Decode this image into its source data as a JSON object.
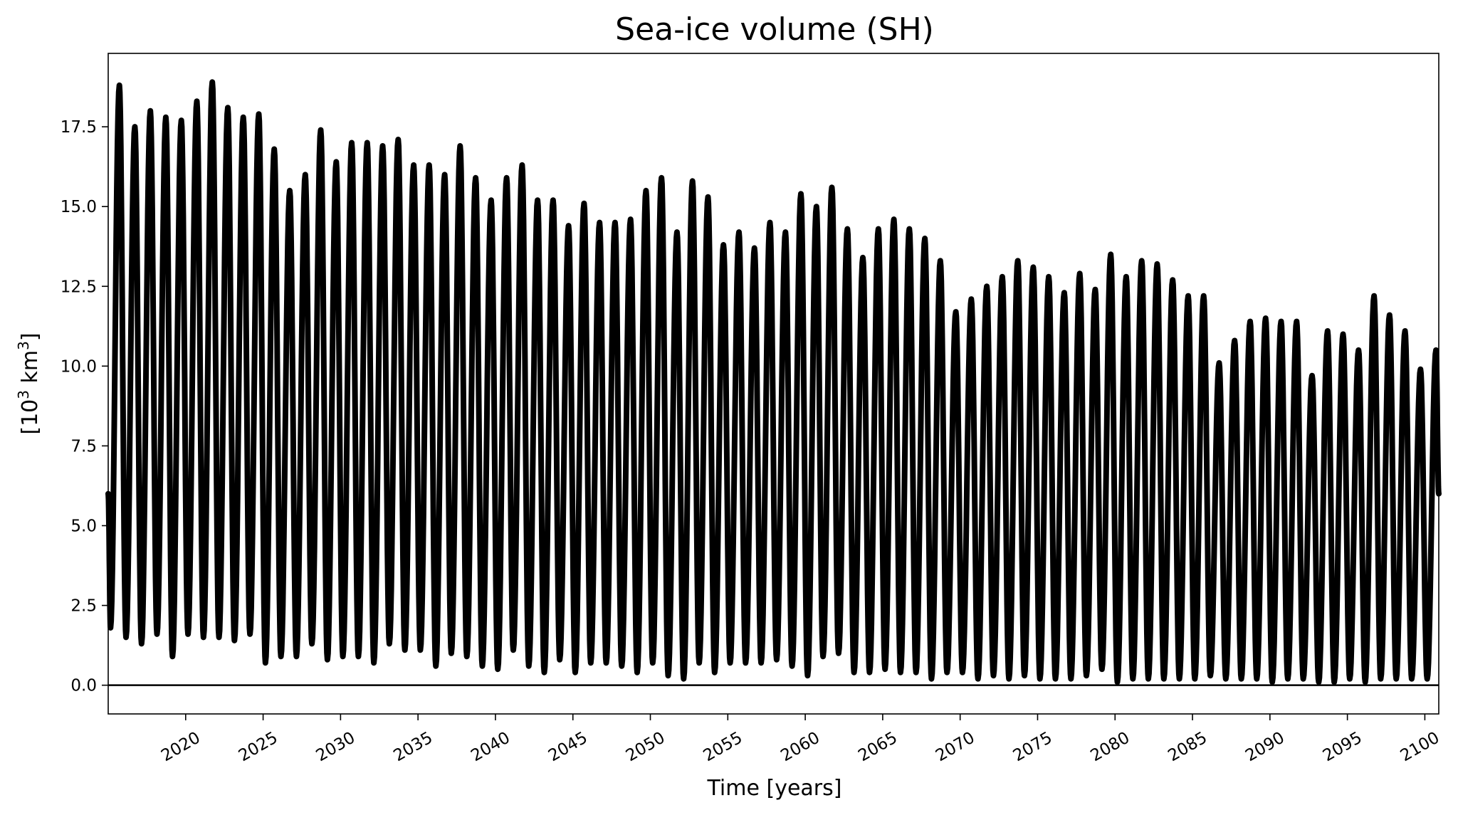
{
  "chart_data": {
    "type": "line",
    "title": "Sea-ice volume (SH)",
    "xlabel": "Time [years]",
    "ylabel_main": "[10",
    "ylabel_sup1": "3",
    "ylabel_mid": " km",
    "ylabel_sup2": "3",
    "ylabel_end": "]",
    "xlim": [
      2015.0,
      2100.9
    ],
    "ylim": [
      -0.9,
      19.8
    ],
    "xticks": [
      2020,
      2025,
      2030,
      2035,
      2040,
      2045,
      2050,
      2055,
      2060,
      2065,
      2070,
      2075,
      2080,
      2085,
      2090,
      2095,
      2100
    ],
    "xtick_labels": [
      "2020",
      "2025",
      "2030",
      "2035",
      "2040",
      "2045",
      "2050",
      "2055",
      "2060",
      "2065",
      "2070",
      "2075",
      "2080",
      "2085",
      "2090",
      "2095",
      "2100"
    ],
    "yticks": [
      0,
      2.5,
      5,
      7.5,
      10,
      12.5,
      15,
      17.5
    ],
    "ytick_labels": [
      "0.0",
      "2.5",
      "5.0",
      "7.5",
      "10.0",
      "12.5",
      "15.0",
      "17.5"
    ],
    "zero_line": 0.0,
    "grid": false,
    "legend": "none",
    "series": [
      {
        "color": "#000000",
        "start_value": 6.0,
        "end_value": 6.0,
        "peak_phase": 0.72,
        "annual_maxima": [
          {
            "x": 2015.72,
            "y": 18.8
          },
          {
            "x": 2016.72,
            "y": 17.5
          },
          {
            "x": 2017.72,
            "y": 18.0
          },
          {
            "x": 2018.72,
            "y": 17.8
          },
          {
            "x": 2019.72,
            "y": 17.7
          },
          {
            "x": 2020.72,
            "y": 18.3
          },
          {
            "x": 2021.72,
            "y": 18.9
          },
          {
            "x": 2022.72,
            "y": 18.1
          },
          {
            "x": 2023.72,
            "y": 17.8
          },
          {
            "x": 2024.72,
            "y": 17.9
          },
          {
            "x": 2025.72,
            "y": 16.8
          },
          {
            "x": 2026.72,
            "y": 15.5
          },
          {
            "x": 2027.72,
            "y": 16.0
          },
          {
            "x": 2028.72,
            "y": 17.4
          },
          {
            "x": 2029.72,
            "y": 16.4
          },
          {
            "x": 2030.72,
            "y": 17.0
          },
          {
            "x": 2031.72,
            "y": 17.0
          },
          {
            "x": 2032.72,
            "y": 16.9
          },
          {
            "x": 2033.72,
            "y": 17.1
          },
          {
            "x": 2034.72,
            "y": 16.3
          },
          {
            "x": 2035.72,
            "y": 16.3
          },
          {
            "x": 2036.72,
            "y": 16.0
          },
          {
            "x": 2037.72,
            "y": 16.9
          },
          {
            "x": 2038.72,
            "y": 15.9
          },
          {
            "x": 2039.72,
            "y": 15.2
          },
          {
            "x": 2040.72,
            "y": 15.9
          },
          {
            "x": 2041.72,
            "y": 16.3
          },
          {
            "x": 2042.72,
            "y": 15.2
          },
          {
            "x": 2043.72,
            "y": 15.2
          },
          {
            "x": 2044.72,
            "y": 14.4
          },
          {
            "x": 2045.72,
            "y": 15.1
          },
          {
            "x": 2046.72,
            "y": 14.5
          },
          {
            "x": 2047.72,
            "y": 14.5
          },
          {
            "x": 2048.72,
            "y": 14.6
          },
          {
            "x": 2049.72,
            "y": 15.5
          },
          {
            "x": 2050.72,
            "y": 15.9
          },
          {
            "x": 2051.72,
            "y": 14.2
          },
          {
            "x": 2052.72,
            "y": 15.8
          },
          {
            "x": 2053.72,
            "y": 15.3
          },
          {
            "x": 2054.72,
            "y": 13.8
          },
          {
            "x": 2055.72,
            "y": 14.2
          },
          {
            "x": 2056.72,
            "y": 13.7
          },
          {
            "x": 2057.72,
            "y": 14.5
          },
          {
            "x": 2058.72,
            "y": 14.2
          },
          {
            "x": 2059.72,
            "y": 15.4
          },
          {
            "x": 2060.72,
            "y": 15.0
          },
          {
            "x": 2061.72,
            "y": 15.6
          },
          {
            "x": 2062.72,
            "y": 14.3
          },
          {
            "x": 2063.72,
            "y": 13.4
          },
          {
            "x": 2064.72,
            "y": 14.3
          },
          {
            "x": 2065.72,
            "y": 14.6
          },
          {
            "x": 2066.72,
            "y": 14.3
          },
          {
            "x": 2067.72,
            "y": 14.0
          },
          {
            "x": 2068.72,
            "y": 13.3
          },
          {
            "x": 2069.72,
            "y": 11.7
          },
          {
            "x": 2070.72,
            "y": 12.1
          },
          {
            "x": 2071.72,
            "y": 12.5
          },
          {
            "x": 2072.72,
            "y": 12.8
          },
          {
            "x": 2073.72,
            "y": 13.3
          },
          {
            "x": 2074.72,
            "y": 13.1
          },
          {
            "x": 2075.72,
            "y": 12.8
          },
          {
            "x": 2076.72,
            "y": 12.3
          },
          {
            "x": 2077.72,
            "y": 12.9
          },
          {
            "x": 2078.72,
            "y": 12.4
          },
          {
            "x": 2079.72,
            "y": 13.5
          },
          {
            "x": 2080.72,
            "y": 12.8
          },
          {
            "x": 2081.72,
            "y": 13.3
          },
          {
            "x": 2082.72,
            "y": 13.2
          },
          {
            "x": 2083.72,
            "y": 12.7
          },
          {
            "x": 2084.72,
            "y": 12.2
          },
          {
            "x": 2085.72,
            "y": 12.2
          },
          {
            "x": 2086.72,
            "y": 10.1
          },
          {
            "x": 2087.72,
            "y": 10.8
          },
          {
            "x": 2088.72,
            "y": 11.4
          },
          {
            "x": 2089.72,
            "y": 11.5
          },
          {
            "x": 2090.72,
            "y": 11.4
          },
          {
            "x": 2091.72,
            "y": 11.4
          },
          {
            "x": 2092.72,
            "y": 9.7
          },
          {
            "x": 2093.72,
            "y": 11.1
          },
          {
            "x": 2094.72,
            "y": 11.0
          },
          {
            "x": 2095.72,
            "y": 10.5
          },
          {
            "x": 2096.72,
            "y": 12.2
          },
          {
            "x": 2097.72,
            "y": 11.6
          },
          {
            "x": 2098.72,
            "y": 11.1
          },
          {
            "x": 2099.72,
            "y": 9.9
          },
          {
            "x": 2100.72,
            "y": 10.5
          }
        ],
        "annual_minima": [
          {
            "x": 2015.15,
            "y": 1.8
          },
          {
            "x": 2016.15,
            "y": 1.5
          },
          {
            "x": 2017.15,
            "y": 1.3
          },
          {
            "x": 2018.15,
            "y": 1.6
          },
          {
            "x": 2019.15,
            "y": 0.9
          },
          {
            "x": 2020.15,
            "y": 1.6
          },
          {
            "x": 2021.15,
            "y": 1.5
          },
          {
            "x": 2022.15,
            "y": 1.5
          },
          {
            "x": 2023.15,
            "y": 1.4
          },
          {
            "x": 2024.15,
            "y": 1.6
          },
          {
            "x": 2025.15,
            "y": 0.7
          },
          {
            "x": 2026.15,
            "y": 0.9
          },
          {
            "x": 2027.15,
            "y": 0.9
          },
          {
            "x": 2028.15,
            "y": 1.3
          },
          {
            "x": 2029.15,
            "y": 0.8
          },
          {
            "x": 2030.15,
            "y": 0.9
          },
          {
            "x": 2031.15,
            "y": 0.9
          },
          {
            "x": 2032.15,
            "y": 0.7
          },
          {
            "x": 2033.15,
            "y": 1.3
          },
          {
            "x": 2034.15,
            "y": 1.1
          },
          {
            "x": 2035.15,
            "y": 1.1
          },
          {
            "x": 2036.15,
            "y": 0.6
          },
          {
            "x": 2037.15,
            "y": 1.0
          },
          {
            "x": 2038.15,
            "y": 0.9
          },
          {
            "x": 2039.15,
            "y": 0.6
          },
          {
            "x": 2040.15,
            "y": 0.5
          },
          {
            "x": 2041.15,
            "y": 1.1
          },
          {
            "x": 2042.15,
            "y": 0.6
          },
          {
            "x": 2043.15,
            "y": 0.4
          },
          {
            "x": 2044.15,
            "y": 0.8
          },
          {
            "x": 2045.15,
            "y": 0.4
          },
          {
            "x": 2046.15,
            "y": 0.7
          },
          {
            "x": 2047.15,
            "y": 0.7
          },
          {
            "x": 2048.15,
            "y": 0.6
          },
          {
            "x": 2049.15,
            "y": 0.4
          },
          {
            "x": 2050.15,
            "y": 0.7
          },
          {
            "x": 2051.15,
            "y": 0.3
          },
          {
            "x": 2052.15,
            "y": 0.2
          },
          {
            "x": 2053.15,
            "y": 0.7
          },
          {
            "x": 2054.15,
            "y": 0.4
          },
          {
            "x": 2055.15,
            "y": 0.7
          },
          {
            "x": 2056.15,
            "y": 0.7
          },
          {
            "x": 2057.15,
            "y": 0.7
          },
          {
            "x": 2058.15,
            "y": 0.8
          },
          {
            "x": 2059.15,
            "y": 0.6
          },
          {
            "x": 2060.15,
            "y": 0.3
          },
          {
            "x": 2061.15,
            "y": 0.9
          },
          {
            "x": 2062.15,
            "y": 1.0
          },
          {
            "x": 2063.15,
            "y": 0.4
          },
          {
            "x": 2064.15,
            "y": 0.4
          },
          {
            "x": 2065.15,
            "y": 0.5
          },
          {
            "x": 2066.15,
            "y": 0.4
          },
          {
            "x": 2067.15,
            "y": 0.4
          },
          {
            "x": 2068.15,
            "y": 0.2
          },
          {
            "x": 2069.15,
            "y": 0.4
          },
          {
            "x": 2070.15,
            "y": 0.4
          },
          {
            "x": 2071.15,
            "y": 0.2
          },
          {
            "x": 2072.15,
            "y": 0.3
          },
          {
            "x": 2073.15,
            "y": 0.2
          },
          {
            "x": 2074.15,
            "y": 0.3
          },
          {
            "x": 2075.15,
            "y": 0.2
          },
          {
            "x": 2076.15,
            "y": 0.2
          },
          {
            "x": 2077.15,
            "y": 0.2
          },
          {
            "x": 2078.15,
            "y": 0.3
          },
          {
            "x": 2079.15,
            "y": 0.5
          },
          {
            "x": 2080.15,
            "y": 0.1
          },
          {
            "x": 2081.15,
            "y": 0.2
          },
          {
            "x": 2082.15,
            "y": 0.2
          },
          {
            "x": 2083.15,
            "y": 0.2
          },
          {
            "x": 2084.15,
            "y": 0.2
          },
          {
            "x": 2085.15,
            "y": 0.2
          },
          {
            "x": 2086.15,
            "y": 0.3
          },
          {
            "x": 2087.15,
            "y": 0.2
          },
          {
            "x": 2088.15,
            "y": 0.2
          },
          {
            "x": 2089.15,
            "y": 0.2
          },
          {
            "x": 2090.15,
            "y": 0.1
          },
          {
            "x": 2091.15,
            "y": 0.2
          },
          {
            "x": 2092.15,
            "y": 0.2
          },
          {
            "x": 2093.15,
            "y": 0.1
          },
          {
            "x": 2094.15,
            "y": 0.1
          },
          {
            "x": 2095.15,
            "y": 0.2
          },
          {
            "x": 2096.15,
            "y": 0.1
          },
          {
            "x": 2097.15,
            "y": 0.2
          },
          {
            "x": 2098.15,
            "y": 0.2
          },
          {
            "x": 2099.15,
            "y": 0.2
          },
          {
            "x": 2100.15,
            "y": 0.2
          }
        ]
      }
    ]
  }
}
